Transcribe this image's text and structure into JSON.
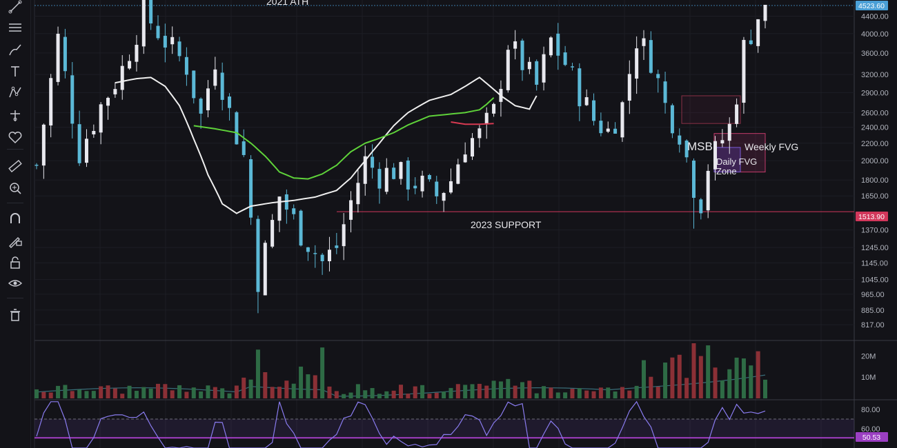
{
  "toolbar": {
    "tools": [
      "trend-line-icon",
      "horizontal-lines-icon",
      "brush-icon",
      "text-icon",
      "pattern-icon",
      "projection-icon",
      "favorite-heart-icon",
      "ruler-icon",
      "zoom-in-icon",
      "magnet-icon",
      "lock-drawing-icon",
      "lock-icon",
      "eye-icon",
      "trash-icon"
    ]
  },
  "colors": {
    "background": "#131318",
    "candle_up": "#e8e8ee",
    "candle_down": "#5bb8d6",
    "ma_white": "#f0f0f0",
    "ma_green": "#5fd33a",
    "ma_red": "#d83a52",
    "support_line": "#d2375b",
    "price_tag": "#4a9fd6",
    "rsi": "#8a7cf0",
    "rsi_midline": "#a43ec6",
    "vol_up": "#2e6b45",
    "vol_down": "#8b3036"
  },
  "chart_data": [
    {
      "type": "candlestick",
      "title": "",
      "y_axis_ticks": [
        "4400.00",
        "4000.00",
        "3600.00",
        "3200.00",
        "2900.00",
        "2600.00",
        "2400.00",
        "2200.00",
        "2000.00",
        "1800.00",
        "1650.00",
        "1513.90",
        "1370.00",
        "1245.00",
        "1145.00",
        "1045.00",
        "965.00",
        "885.00",
        "817.00"
      ],
      "ylim": [
        790,
        4700
      ],
      "scale": "log",
      "last_price": "4523.60",
      "support_price": "1513.90",
      "close_path": [
        [
          0,
          1950
        ],
        [
          3,
          3900
        ],
        [
          6,
          2100
        ],
        [
          9,
          2700
        ],
        [
          12,
          3300
        ],
        [
          15,
          4500
        ],
        [
          18,
          3850
        ],
        [
          21,
          3350
        ],
        [
          23,
          2550
        ],
        [
          25,
          3500
        ],
        [
          27,
          2600
        ],
        [
          29,
          2050
        ],
        [
          31,
          1050
        ],
        [
          34,
          1650
        ],
        [
          37,
          1350
        ],
        [
          40,
          1150
        ],
        [
          42,
          1250
        ],
        [
          44,
          1600
        ],
        [
          46,
          2000
        ],
        [
          48,
          1850
        ],
        [
          50,
          1900
        ],
        [
          52,
          1800
        ],
        [
          54,
          1750
        ],
        [
          56,
          1650
        ],
        [
          58,
          1800
        ],
        [
          60,
          2200
        ],
        [
          62,
          2300
        ],
        [
          64,
          2600
        ],
        [
          66,
          3800
        ],
        [
          68,
          3400
        ],
        [
          70,
          3000
        ],
        [
          72,
          3850
        ],
        [
          74,
          3400
        ],
        [
          76,
          2900
        ],
        [
          78,
          2500
        ],
        [
          80,
          2350
        ],
        [
          82,
          2700
        ],
        [
          84,
          3900
        ],
        [
          86,
          3500
        ],
        [
          88,
          2700
        ],
        [
          90,
          2350
        ],
        [
          92,
          1750
        ],
        [
          93,
          1600
        ],
        [
          94,
          1950
        ],
        [
          96,
          2250
        ],
        [
          97,
          2400
        ],
        [
          98,
          2900
        ],
        [
          99,
          3700
        ],
        [
          101,
          4400
        ],
        [
          102,
          4520
        ]
      ],
      "wick_lows": [
        [
          31,
          870
        ],
        [
          92,
          1380
        ]
      ],
      "wick_highs": [
        [
          15,
          4700
        ],
        [
          102,
          4600
        ]
      ],
      "ma_white": [
        [
          11,
          3060
        ],
        [
          14,
          3130
        ],
        [
          16,
          3150
        ],
        [
          18,
          3000
        ],
        [
          20,
          2700
        ],
        [
          22,
          2250
        ],
        [
          24,
          1850
        ],
        [
          26,
          1580
        ],
        [
          28,
          1500
        ],
        [
          30,
          1560
        ],
        [
          33,
          1590
        ],
        [
          36,
          1610
        ],
        [
          39,
          1640
        ],
        [
          42,
          1700
        ],
        [
          44,
          1820
        ],
        [
          46,
          2000
        ],
        [
          48,
          2200
        ],
        [
          50,
          2420
        ],
        [
          52,
          2600
        ],
        [
          55,
          2780
        ],
        [
          58,
          2870
        ],
        [
          60,
          3000
        ],
        [
          62,
          3150
        ],
        [
          63,
          3050
        ],
        [
          65,
          2850
        ],
        [
          67,
          2700
        ],
        [
          69,
          2650
        ],
        [
          70,
          2850
        ]
      ],
      "ma_green": [
        [
          22,
          2420
        ],
        [
          25,
          2380
        ],
        [
          28,
          2330
        ],
        [
          30,
          2200
        ],
        [
          32,
          2050
        ],
        [
          34,
          1880
        ],
        [
          36,
          1820
        ],
        [
          38,
          1810
        ],
        [
          40,
          1860
        ],
        [
          42,
          1950
        ],
        [
          44,
          2100
        ],
        [
          46,
          2200
        ],
        [
          48,
          2260
        ],
        [
          50,
          2330
        ],
        [
          52,
          2430
        ],
        [
          55,
          2550
        ],
        [
          58,
          2580
        ],
        [
          60,
          2600
        ],
        [
          62,
          2640
        ],
        [
          63,
          2720
        ],
        [
          64,
          2820
        ]
      ],
      "ma_red": [
        [
          58,
          2470
        ],
        [
          60,
          2440
        ],
        [
          62,
          2440
        ],
        [
          64,
          2450
        ]
      ],
      "annotations": {
        "ath_label": "2021 ATH",
        "support_label": "2023 SUPPORT",
        "msb_label": "MSB",
        "weekly_fvg_label": "Weekly FVG",
        "daily_fvg_label_1": "Daily FVG",
        "daily_fvg_label_2": "Zone"
      }
    },
    {
      "type": "bar",
      "title": "",
      "y_axis_ticks": [
        "20M",
        "10M"
      ],
      "ylim": [
        0,
        26
      ],
      "unit": "M"
    },
    {
      "type": "line",
      "title": "",
      "y_axis_ticks": [
        "80.00",
        "60.00"
      ],
      "current_value": "50.53",
      "overbought": 70,
      "midline": 50.53
    }
  ]
}
